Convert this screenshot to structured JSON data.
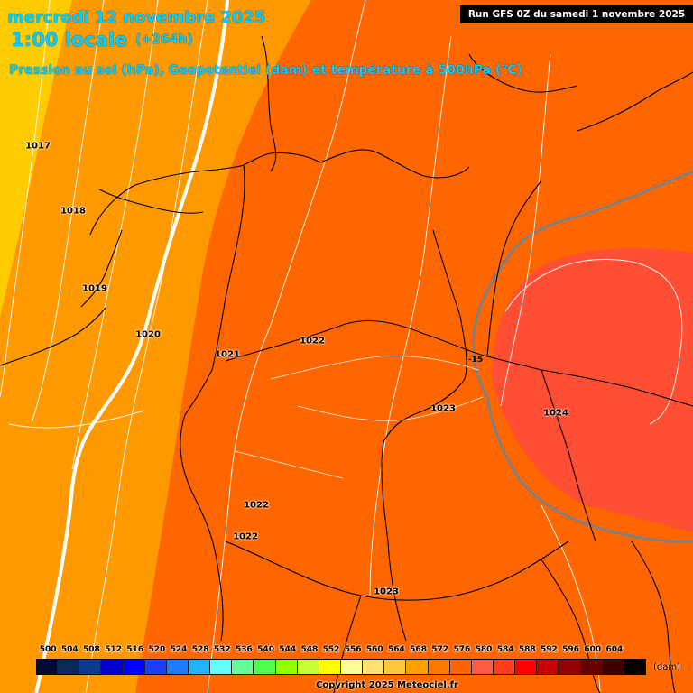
{
  "header": {
    "date": "mercredi 12 novembre 2025",
    "hour": "1:00 locale",
    "offset": "(+264h)",
    "params": "Pression au sol (hPa), Geopotentiel (dam) et température à 500hPa (°C)",
    "run": "Run GFS 0Z du samedi 1 novembre 2025"
  },
  "pressure_labels": [
    "1017",
    "1018",
    "1019",
    "1020",
    "1021",
    "1022",
    "1023",
    "1024",
    "1022",
    "1022",
    "1023"
  ],
  "temperature_label": "-15",
  "legend": {
    "values": [
      "500",
      "504",
      "508",
      "512",
      "516",
      "520",
      "524",
      "528",
      "532",
      "536",
      "540",
      "544",
      "548",
      "552",
      "556",
      "560",
      "564",
      "568",
      "572",
      "576",
      "580",
      "584",
      "588",
      "592",
      "596",
      "600",
      "604"
    ],
    "colors": [
      "#050a32",
      "#0a2a5a",
      "#0b3a8a",
      "#0000c8",
      "#0000ff",
      "#1e3cff",
      "#1e7bff",
      "#20b4ff",
      "#64ffff",
      "#64ff96",
      "#50ff50",
      "#96ff00",
      "#c8ff32",
      "#ffff00",
      "#ffff96",
      "#ffe16e",
      "#ffc83c",
      "#ffa000",
      "#ff7800",
      "#ff6400",
      "#ff5a46",
      "#ff3c1e",
      "#ff0000",
      "#c80000",
      "#960000",
      "#640000",
      "#3c0000",
      "#000000"
    ],
    "unit": "(dam)",
    "copyright": "Copyright 2025 Meteociel.fr"
  }
}
